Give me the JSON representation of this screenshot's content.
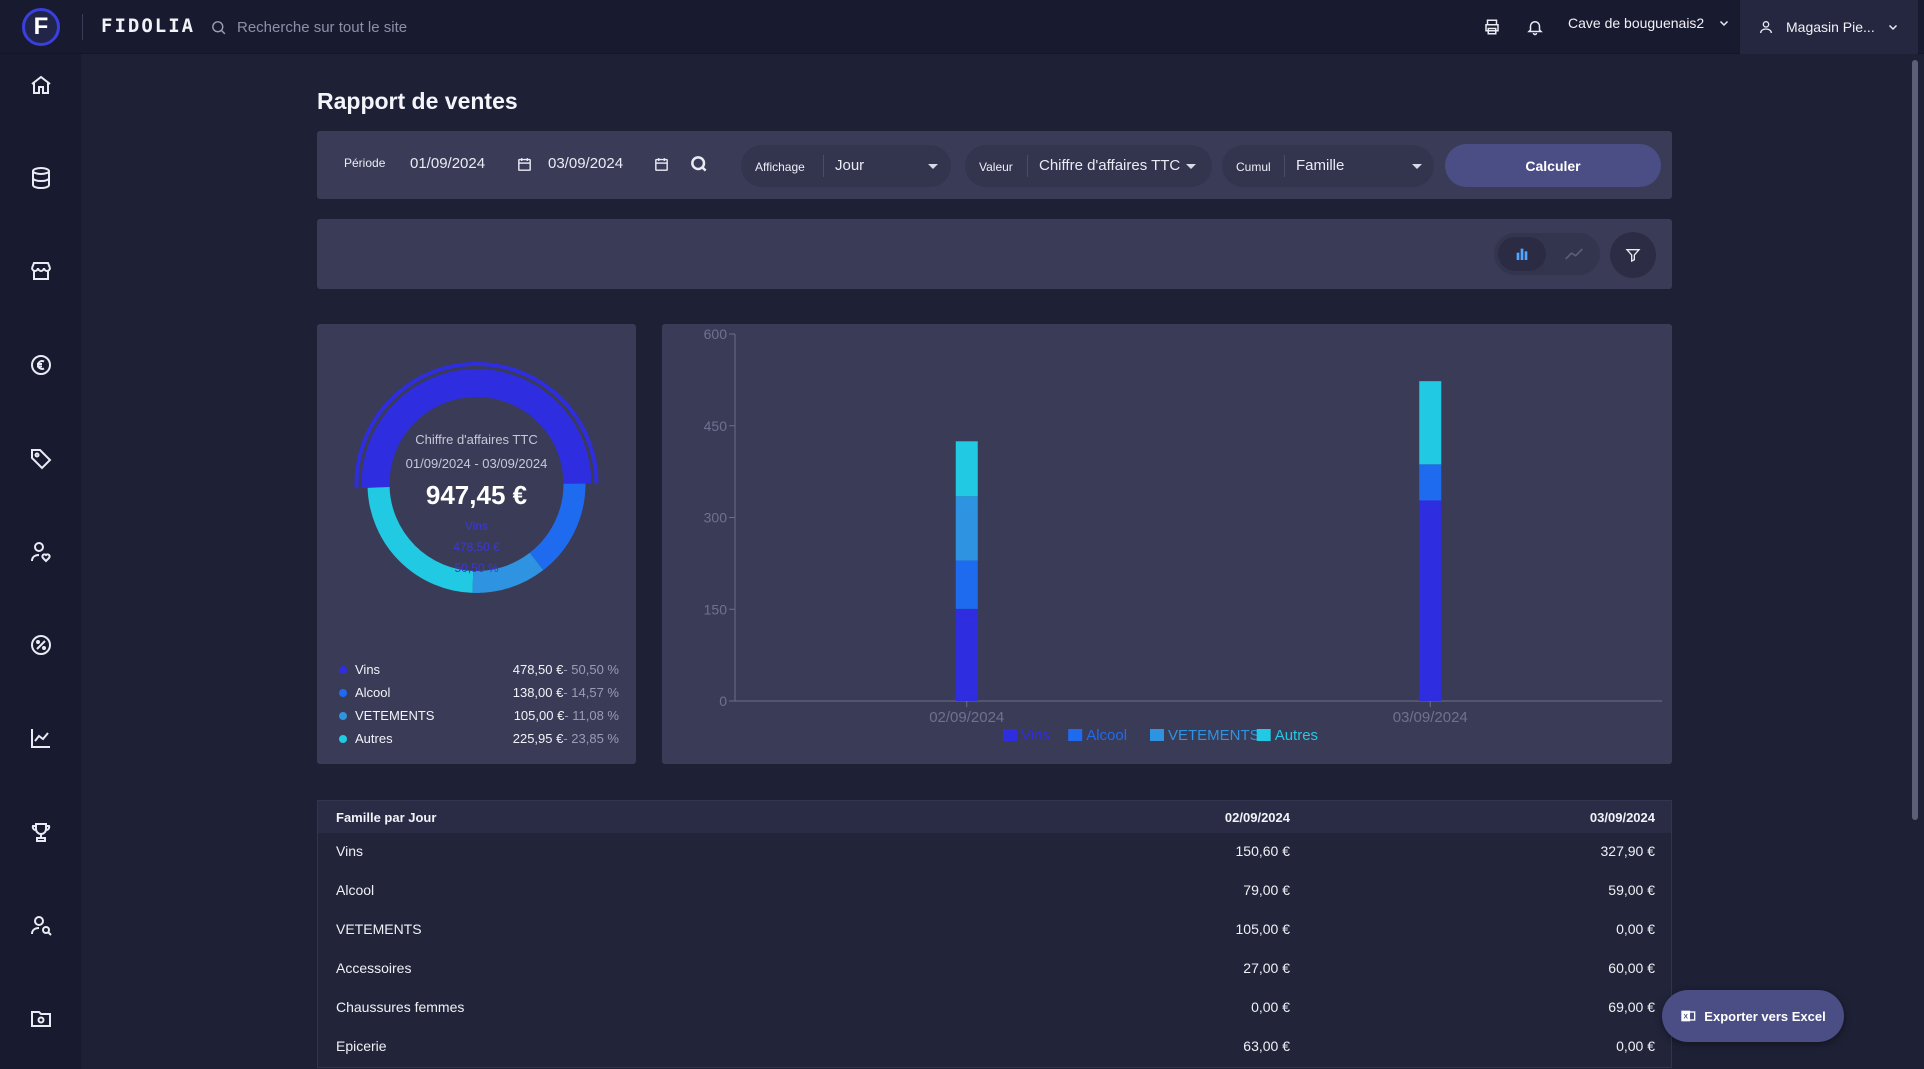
{
  "app": {
    "brand": "FIDOLIA",
    "logo_letter": "F"
  },
  "header": {
    "search_placeholder": "Recherche sur tout le site",
    "store": "Cave de bouguenais2",
    "user": "Magasin Pie..."
  },
  "page": {
    "title": "Rapport de ventes"
  },
  "filters": {
    "period_label": "Période",
    "date_from": "01/09/2024",
    "date_to": "03/09/2024",
    "display_label": "Affichage",
    "display_value": "Jour",
    "value_label": "Valeur",
    "value_value": "Chiffre d'affaires TTC",
    "cumul_label": "Cumul",
    "cumul_value": "Famille",
    "calc_label": "Calculer"
  },
  "donut": {
    "title": "Chiffre d'affaires TTC",
    "period": "01/09/2024 - 03/09/2024",
    "total": "947,45 €",
    "highlight": {
      "name": "Vins",
      "value": "478,50 €",
      "pct": "50,50 %"
    },
    "legend": [
      {
        "name": "Vins",
        "amount": "478,50 €",
        "pct": "- 50,50 %",
        "color": "#2f2de0"
      },
      {
        "name": "Alcool",
        "amount": "138,00 €",
        "pct": "- 14,57 %",
        "color": "#1f6bf0"
      },
      {
        "name": "VETEMENTS",
        "amount": "105,00 €",
        "pct": "- 11,08 %",
        "color": "#2e93e0"
      },
      {
        "name": "Autres",
        "amount": "225,95 €",
        "pct": "- 23,85 %",
        "color": "#22c9e3"
      }
    ]
  },
  "chart_data": {
    "type": "bar",
    "stacked": true,
    "categories": [
      "02/09/2024",
      "03/09/2024"
    ],
    "y_ticks": [
      "0",
      "150",
      "300",
      "450",
      "600"
    ],
    "ylim": [
      0,
      600
    ],
    "series": [
      {
        "name": "Vins",
        "color": "#2f2de0",
        "values": [
          150.6,
          327.9
        ]
      },
      {
        "name": "Alcool",
        "color": "#1f6bf0",
        "values": [
          79.0,
          59.0
        ]
      },
      {
        "name": "VETEMENTS",
        "color": "#2e93e0",
        "values": [
          105.0,
          0.0
        ]
      },
      {
        "name": "Autres",
        "color": "#22c9e3",
        "values": [
          90.0,
          136.0
        ]
      }
    ],
    "legend_position": "bottom-center"
  },
  "table": {
    "headers": [
      "Famille par Jour",
      "02/09/2024",
      "03/09/2024"
    ],
    "rows": [
      [
        "Vins",
        "150,60 €",
        "327,90 €"
      ],
      [
        "Alcool",
        "79,00 €",
        "59,00 €"
      ],
      [
        "VETEMENTS",
        "105,00 €",
        "0,00 €"
      ],
      [
        "Accessoires",
        "27,00 €",
        "60,00 €"
      ],
      [
        "Chaussures femmes",
        "0,00 €",
        "69,00 €"
      ],
      [
        "Epicerie",
        "63,00 €",
        "0,00 €"
      ]
    ]
  },
  "export": {
    "label": "Exporter vers Excel"
  }
}
